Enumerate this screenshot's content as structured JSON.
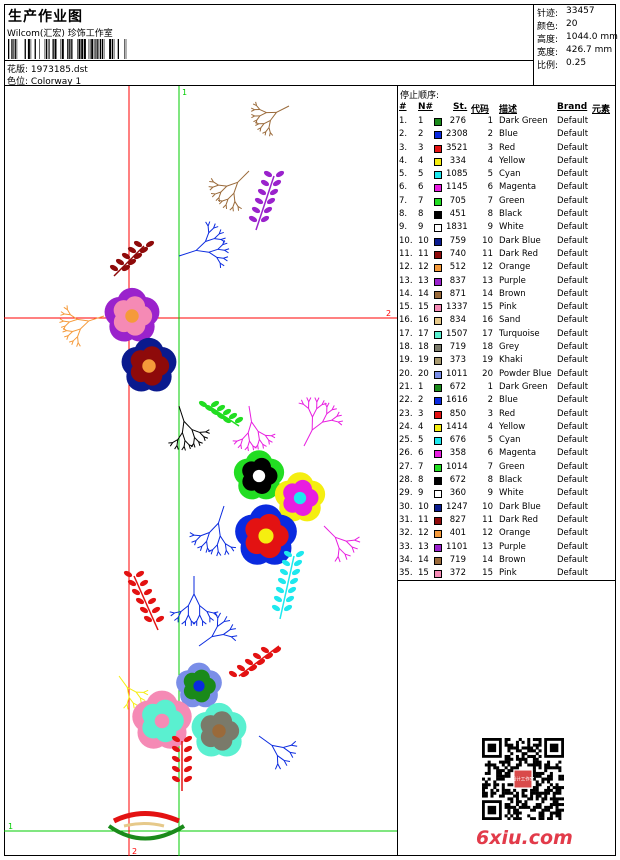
{
  "header": {
    "title": "生产作业图",
    "studio": "Wilcom(汇宏) 珍饰工作室",
    "design_label": "花版:",
    "design_file": "1973185.dst",
    "colorway_label": "色位:",
    "colorway": "Colorway 1"
  },
  "stats": [
    {
      "label": "针迹:",
      "value": "33457"
    },
    {
      "label": "颜色:",
      "value": "20"
    },
    {
      "label": "高度:",
      "value": "1044.0 mm"
    },
    {
      "label": "宽度:",
      "value": "426.7 mm"
    },
    {
      "label": "比例:",
      "value": "0.25"
    }
  ],
  "stops": {
    "title": "停止顺序:",
    "headers": {
      "num": "#",
      "n": "N#",
      "st": "St.",
      "code": "代码",
      "desc": "描述",
      "brand": "Brand",
      "elem": "元素"
    },
    "rows": [
      {
        "num": "1.",
        "n": "1",
        "color": "#1a8a1a",
        "st": "276",
        "code": "1",
        "desc": "Dark Green",
        "brand": "Default"
      },
      {
        "num": "2.",
        "n": "2",
        "color": "#0a2adf",
        "st": "2308",
        "code": "2",
        "desc": "Blue",
        "brand": "Default"
      },
      {
        "num": "3.",
        "n": "3",
        "color": "#e31212",
        "st": "3521",
        "code": "3",
        "desc": "Red",
        "brand": "Default"
      },
      {
        "num": "4.",
        "n": "4",
        "color": "#f5ee10",
        "st": "334",
        "code": "4",
        "desc": "Yellow",
        "brand": "Default"
      },
      {
        "num": "5.",
        "n": "5",
        "color": "#1ee8ee",
        "st": "1085",
        "code": "5",
        "desc": "Cyan",
        "brand": "Default"
      },
      {
        "num": "6.",
        "n": "6",
        "color": "#e81ee0",
        "st": "1145",
        "code": "6",
        "desc": "Magenta",
        "brand": "Default"
      },
      {
        "num": "7.",
        "n": "7",
        "color": "#22dd22",
        "st": "705",
        "code": "7",
        "desc": "Green",
        "brand": "Default"
      },
      {
        "num": "8.",
        "n": "8",
        "color": "#000000",
        "st": "451",
        "code": "8",
        "desc": "Black",
        "brand": "Default"
      },
      {
        "num": "9.",
        "n": "9",
        "color": "#ffffff",
        "st": "1831",
        "code": "9",
        "desc": "White",
        "brand": "Default"
      },
      {
        "num": "10.",
        "n": "10",
        "color": "#0a1a8e",
        "st": "759",
        "code": "10",
        "desc": "Dark Blue",
        "brand": "Default"
      },
      {
        "num": "11.",
        "n": "11",
        "color": "#8e0a0a",
        "st": "740",
        "code": "11",
        "desc": "Dark Red",
        "brand": "Default"
      },
      {
        "num": "12.",
        "n": "12",
        "color": "#f59a3a",
        "st": "512",
        "code": "12",
        "desc": "Orange",
        "brand": "Default"
      },
      {
        "num": "13.",
        "n": "13",
        "color": "#9a22cc",
        "st": "837",
        "code": "13",
        "desc": "Purple",
        "brand": "Default"
      },
      {
        "num": "14.",
        "n": "14",
        "color": "#9a6a3a",
        "st": "871",
        "code": "14",
        "desc": "Brown",
        "brand": "Default"
      },
      {
        "num": "15.",
        "n": "15",
        "color": "#f58ab5",
        "st": "1337",
        "code": "15",
        "desc": "Pink",
        "brand": "Default"
      },
      {
        "num": "16.",
        "n": "16",
        "color": "#e6c98a",
        "st": "834",
        "code": "16",
        "desc": "Sand",
        "brand": "Default"
      },
      {
        "num": "17.",
        "n": "17",
        "color": "#5af0d0",
        "st": "1507",
        "code": "17",
        "desc": "Turquoise",
        "brand": "Default"
      },
      {
        "num": "18.",
        "n": "18",
        "color": "#7a7a6a",
        "st": "719",
        "code": "18",
        "desc": "Grey",
        "brand": "Default"
      },
      {
        "num": "19.",
        "n": "19",
        "color": "#a89a70",
        "st": "373",
        "code": "19",
        "desc": "Khaki",
        "brand": "Default"
      },
      {
        "num": "20.",
        "n": "20",
        "color": "#7a8ee8",
        "st": "1011",
        "code": "20",
        "desc": "Powder Blue",
        "brand": "Default"
      },
      {
        "num": "21.",
        "n": "1",
        "color": "#1a8a1a",
        "st": "672",
        "code": "1",
        "desc": "Dark Green",
        "brand": "Default"
      },
      {
        "num": "22.",
        "n": "2",
        "color": "#0a2adf",
        "st": "1616",
        "code": "2",
        "desc": "Blue",
        "brand": "Default"
      },
      {
        "num": "23.",
        "n": "3",
        "color": "#e31212",
        "st": "850",
        "code": "3",
        "desc": "Red",
        "brand": "Default"
      },
      {
        "num": "24.",
        "n": "4",
        "color": "#f5ee10",
        "st": "1414",
        "code": "4",
        "desc": "Yellow",
        "brand": "Default"
      },
      {
        "num": "25.",
        "n": "5",
        "color": "#1ee8ee",
        "st": "676",
        "code": "5",
        "desc": "Cyan",
        "brand": "Default"
      },
      {
        "num": "26.",
        "n": "6",
        "color": "#e81ee0",
        "st": "358",
        "code": "6",
        "desc": "Magenta",
        "brand": "Default"
      },
      {
        "num": "27.",
        "n": "7",
        "color": "#22dd22",
        "st": "1014",
        "code": "7",
        "desc": "Green",
        "brand": "Default"
      },
      {
        "num": "28.",
        "n": "8",
        "color": "#000000",
        "st": "672",
        "code": "8",
        "desc": "Black",
        "brand": "Default"
      },
      {
        "num": "29.",
        "n": "9",
        "color": "#ffffff",
        "st": "360",
        "code": "9",
        "desc": "White",
        "brand": "Default"
      },
      {
        "num": "30.",
        "n": "10",
        "color": "#0a1a8e",
        "st": "1247",
        "code": "10",
        "desc": "Dark Blue",
        "brand": "Default"
      },
      {
        "num": "31.",
        "n": "11",
        "color": "#8e0a0a",
        "st": "827",
        "code": "11",
        "desc": "Dark Red",
        "brand": "Default"
      },
      {
        "num": "32.",
        "n": "12",
        "color": "#f59a3a",
        "st": "401",
        "code": "12",
        "desc": "Orange",
        "brand": "Default"
      },
      {
        "num": "33.",
        "n": "13",
        "color": "#9a22cc",
        "st": "1101",
        "code": "13",
        "desc": "Purple",
        "brand": "Default"
      },
      {
        "num": "34.",
        "n": "14",
        "color": "#9a6a3a",
        "st": "719",
        "code": "14",
        "desc": "Brown",
        "brand": "Default"
      },
      {
        "num": "35.",
        "n": "15",
        "color": "#f58ab5",
        "st": "372",
        "code": "15",
        "desc": "Pink",
        "brand": "Default"
      }
    ]
  },
  "guides": {
    "h1": "1",
    "h2": "2",
    "v1": "1",
    "v2": "2"
  },
  "watermark": "6xiu.com",
  "qr_stamp": "设计工作室"
}
